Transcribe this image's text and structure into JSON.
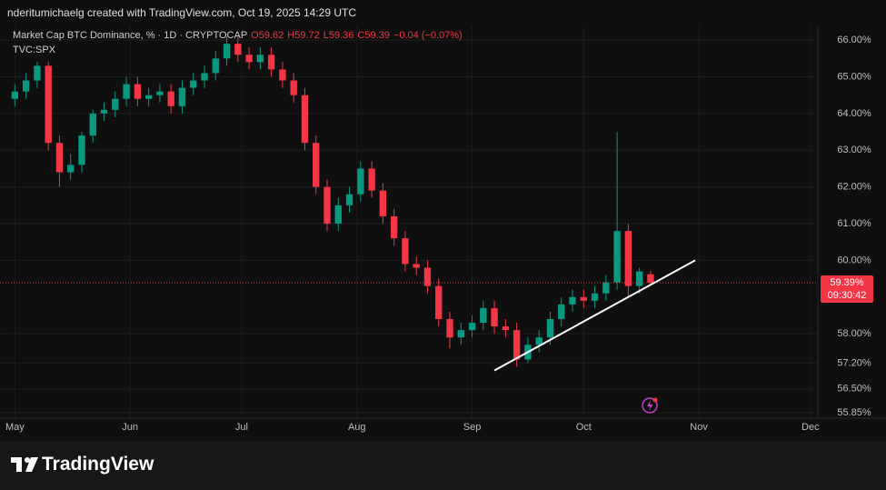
{
  "header": {
    "credit": "nderitumichaelg created with TradingView.com, Oct 19, 2025 14:29 UTC"
  },
  "chart_data": {
    "type": "candlestick",
    "title": "Market Cap BTC Dominance, % · 1D · CRYPTOCAP",
    "ohlc_legend": [
      "O59.62",
      "H59.72",
      "L59.36",
      "C59.39",
      "−0.04 (−0.07%)"
    ],
    "subtitle": "TVC:SPX",
    "up_color": "#089981",
    "down_color": "#f23645",
    "x": [
      0,
      3,
      6,
      9,
      12,
      15,
      18,
      21,
      24,
      27,
      30,
      33,
      36,
      39,
      42,
      45,
      48,
      51,
      54,
      57,
      60,
      63,
      66,
      69,
      72,
      75,
      78,
      81,
      84,
      87,
      90,
      93,
      96,
      99,
      102,
      105,
      108,
      111,
      114,
      117,
      120,
      123,
      126,
      129,
      132,
      135,
      138,
      141,
      144,
      147,
      150,
      153,
      156,
      159,
      162,
      165,
      168,
      171
    ],
    "open": [
      64.4,
      64.6,
      64.9,
      65.3,
      63.2,
      62.4,
      62.6,
      63.4,
      64.0,
      64.1,
      64.4,
      64.8,
      64.4,
      64.5,
      64.6,
      64.2,
      64.7,
      64.9,
      65.1,
      65.5,
      65.9,
      65.6,
      65.4,
      65.6,
      65.2,
      64.9,
      64.5,
      63.2,
      62.0,
      61.0,
      61.5,
      61.8,
      62.5,
      61.9,
      61.2,
      60.6,
      59.9,
      59.8,
      59.3,
      58.4,
      57.9,
      58.1,
      58.3,
      58.7,
      58.2,
      58.1,
      57.3,
      57.7,
      57.9,
      58.4,
      58.8,
      59.0,
      58.9,
      59.1,
      59.4,
      60.8,
      59.3,
      59.62
    ],
    "high": [
      64.8,
      65.1,
      65.4,
      65.4,
      63.4,
      62.9,
      63.5,
      64.1,
      64.3,
      64.6,
      65.0,
      65.0,
      64.7,
      64.8,
      64.8,
      64.9,
      65.1,
      65.3,
      65.7,
      66.1,
      66.1,
      65.8,
      65.8,
      65.8,
      65.4,
      65.1,
      64.7,
      63.4,
      62.2,
      61.7,
      62.0,
      62.7,
      62.7,
      62.1,
      61.4,
      60.8,
      60.1,
      60.0,
      59.5,
      58.6,
      58.3,
      58.5,
      58.9,
      58.9,
      58.4,
      58.3,
      57.9,
      58.1,
      58.6,
      59.0,
      59.2,
      59.2,
      59.3,
      59.6,
      63.5,
      61.0,
      59.8,
      59.72
    ],
    "low": [
      64.2,
      64.4,
      64.7,
      63.0,
      62.0,
      62.2,
      62.4,
      63.2,
      63.8,
      63.9,
      64.2,
      64.2,
      64.2,
      64.3,
      64.0,
      64.0,
      64.5,
      64.7,
      64.9,
      65.3,
      65.4,
      65.2,
      65.2,
      65.0,
      64.7,
      64.3,
      63.0,
      61.8,
      60.8,
      60.8,
      61.3,
      61.6,
      61.7,
      61.0,
      60.4,
      59.7,
      59.6,
      59.1,
      58.2,
      57.6,
      57.7,
      57.9,
      58.1,
      58.0,
      57.9,
      57.1,
      57.2,
      57.5,
      57.7,
      58.2,
      58.6,
      58.7,
      58.7,
      58.9,
      59.2,
      59.0,
      59.1,
      59.36
    ],
    "close": [
      64.6,
      64.9,
      65.3,
      63.2,
      62.4,
      62.6,
      63.4,
      64.0,
      64.1,
      64.4,
      64.8,
      64.4,
      64.5,
      64.6,
      64.2,
      64.7,
      64.9,
      65.1,
      65.5,
      65.9,
      65.6,
      65.4,
      65.6,
      65.2,
      64.9,
      64.5,
      63.2,
      62.0,
      61.0,
      61.5,
      61.8,
      62.5,
      61.9,
      61.2,
      60.6,
      59.9,
      59.8,
      59.3,
      58.4,
      57.9,
      58.1,
      58.3,
      58.7,
      58.2,
      58.1,
      57.3,
      57.7,
      57.9,
      58.4,
      58.8,
      59.0,
      58.9,
      59.1,
      59.4,
      60.8,
      59.3,
      59.7,
      59.39
    ],
    "xlim": [
      -4,
      216
    ],
    "xticks": [
      {
        "value": 0,
        "label": "May"
      },
      {
        "value": 31,
        "label": "Jun"
      },
      {
        "value": 61,
        "label": "Jul"
      },
      {
        "value": 92,
        "label": "Aug"
      },
      {
        "value": 123,
        "label": "Sep"
      },
      {
        "value": 153,
        "label": "Oct"
      },
      {
        "value": 184,
        "label": "Nov"
      },
      {
        "value": 214,
        "label": "Dec"
      }
    ],
    "ylim": [
      55.7,
      66.35
    ],
    "yticks": [
      {
        "value": 66,
        "label": "66.00%"
      },
      {
        "value": 65,
        "label": "65.00%"
      },
      {
        "value": 64,
        "label": "64.00%"
      },
      {
        "value": 63,
        "label": "63.00%"
      },
      {
        "value": 62,
        "label": "62.00%"
      },
      {
        "value": 61,
        "label": "61.00%"
      },
      {
        "value": 60,
        "label": "60.00%"
      },
      {
        "value": 58,
        "label": "58.00%"
      },
      {
        "value": 57.2,
        "label": "57.20%"
      },
      {
        "value": 56.5,
        "label": "56.50%"
      },
      {
        "value": 55.85,
        "label": "55.85%"
      }
    ],
    "grid": true,
    "price_line": {
      "value": 59.39,
      "label": "59.39%",
      "countdown": "09:30:42",
      "color": "#f23645"
    },
    "trendline": {
      "x": [
        129,
        183
      ],
      "y": [
        57.0,
        60.0
      ],
      "color": "#ffffff"
    }
  },
  "footer": {
    "brand": "TradingView"
  }
}
